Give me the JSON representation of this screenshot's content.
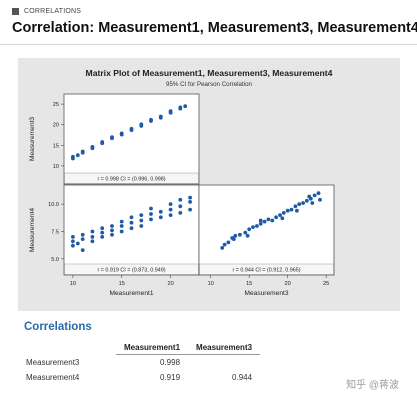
{
  "header": {
    "section_tag": "CORRELATIONS",
    "title": "Correlation: Measurement1, Measurement3, Measurement4"
  },
  "chart_data": {
    "type": "scatter",
    "title": "Matrix Plot of Measurement1, Measurement3, Measurement4",
    "subtitle": "95% CI for Pearson Correlation",
    "grid": false,
    "color": "#1f5aa6",
    "variables": [
      "Measurement1",
      "Measurement3",
      "Measurement4"
    ],
    "panels": [
      {
        "position": "top-left",
        "x_var": "Measurement1",
        "y_var": "Measurement3",
        "xlim": [
          9.5,
          22.5
        ],
        "ylim": [
          9,
          26
        ],
        "yticks": [
          10,
          15,
          20,
          25
        ],
        "annotation": "r = 0.998   CI = (0.996, 0.998)",
        "points": [
          [
            10,
            11.8
          ],
          [
            10,
            12.2
          ],
          [
            10.5,
            12.6
          ],
          [
            11,
            13.2
          ],
          [
            11,
            13.5
          ],
          [
            12,
            14.3
          ],
          [
            12,
            14.6
          ],
          [
            13,
            15.5
          ],
          [
            13,
            15.8
          ],
          [
            14,
            16.7
          ],
          [
            14,
            17
          ],
          [
            15,
            17.6
          ],
          [
            15,
            17.9
          ],
          [
            16,
            18.7
          ],
          [
            16,
            19
          ],
          [
            17,
            19.7
          ],
          [
            17,
            20.1
          ],
          [
            18,
            20.9
          ],
          [
            18,
            21.2
          ],
          [
            19,
            21.7
          ],
          [
            19,
            22
          ],
          [
            20,
            22.9
          ],
          [
            20,
            23.3
          ],
          [
            21,
            23.9
          ],
          [
            21,
            24.2
          ],
          [
            21.5,
            24.5
          ]
        ]
      },
      {
        "position": "bottom-left",
        "x_var": "Measurement1",
        "y_var": "Measurement4",
        "xlim": [
          9.5,
          22.5
        ],
        "ylim": [
          4.8,
          11.2
        ],
        "xticks": [
          10,
          15,
          20
        ],
        "yticks": [
          5.0,
          7.5,
          10.0
        ],
        "xlabel": "Measurement1",
        "ylabel": "Measurement4",
        "annotation": "r = 0.919   CI = (0.873, 0.949)",
        "points": [
          [
            10,
            6.2
          ],
          [
            10,
            6.6
          ],
          [
            10,
            7
          ],
          [
            10.5,
            6.4
          ],
          [
            11,
            5.8
          ],
          [
            11,
            6.8
          ],
          [
            11,
            7.2
          ],
          [
            12,
            6.6
          ],
          [
            12,
            7
          ],
          [
            12,
            7.5
          ],
          [
            13,
            7
          ],
          [
            13,
            7.4
          ],
          [
            13,
            7.8
          ],
          [
            14,
            7.2
          ],
          [
            14,
            7.6
          ],
          [
            14,
            8
          ],
          [
            15,
            7.5
          ],
          [
            15,
            8
          ],
          [
            15,
            8.4
          ],
          [
            16,
            7.8
          ],
          [
            16,
            8.3
          ],
          [
            16,
            8.8
          ],
          [
            17,
            8
          ],
          [
            17,
            8.5
          ],
          [
            17,
            9
          ],
          [
            18,
            8.6
          ],
          [
            18,
            9.1
          ],
          [
            18,
            9.6
          ],
          [
            19,
            8.8
          ],
          [
            19,
            9.3
          ],
          [
            20,
            9
          ],
          [
            20,
            9.5
          ],
          [
            20,
            10
          ],
          [
            21,
            9.2
          ],
          [
            21,
            9.8
          ],
          [
            21,
            10.4
          ],
          [
            22,
            9.5
          ],
          [
            22,
            10.2
          ],
          [
            22,
            10.6
          ]
        ]
      },
      {
        "position": "bottom-right",
        "x_var": "Measurement3",
        "y_var": "Measurement4",
        "xlim": [
          9,
          25.5
        ],
        "ylim": [
          4.8,
          11.2
        ],
        "xticks": [
          10,
          15,
          20,
          25
        ],
        "xlabel": "Measurement3",
        "annotation": "r = 0.944   CI = (0.912, 0.965)",
        "points": [
          [
            11.5,
            6
          ],
          [
            11.8,
            6.3
          ],
          [
            12.3,
            6.5
          ],
          [
            12.8,
            6.9
          ],
          [
            13.2,
            7.1
          ],
          [
            13.8,
            7.2
          ],
          [
            14.5,
            7.4
          ],
          [
            15,
            7.7
          ],
          [
            15.5,
            7.9
          ],
          [
            16,
            8
          ],
          [
            16.5,
            8.2
          ],
          [
            17,
            8.4
          ],
          [
            17.5,
            8.6
          ],
          [
            18,
            8.5
          ],
          [
            18.5,
            8.8
          ],
          [
            19,
            9
          ],
          [
            19.5,
            9.2
          ],
          [
            20,
            9.4
          ],
          [
            20.5,
            9.5
          ],
          [
            21,
            9.8
          ],
          [
            21.5,
            10
          ],
          [
            22,
            10.1
          ],
          [
            22.5,
            10.3
          ],
          [
            23,
            10.5
          ],
          [
            23.5,
            10.8
          ],
          [
            24,
            11
          ],
          [
            16.5,
            8.5
          ],
          [
            19.3,
            8.7
          ],
          [
            21.2,
            9.4
          ],
          [
            23.2,
            10.1
          ],
          [
            13,
            6.8
          ],
          [
            14.8,
            7.1
          ],
          [
            22.8,
            10.7
          ],
          [
            24.2,
            10.4
          ]
        ]
      }
    ]
  },
  "correlations": {
    "section_title": "Correlations",
    "columns": [
      "Measurement1",
      "Measurement3"
    ],
    "rows": [
      {
        "label": "Measurement3",
        "values": [
          "0.998",
          ""
        ]
      },
      {
        "label": "Measurement4",
        "values": [
          "0.919",
          "0.944"
        ]
      }
    ]
  },
  "watermark": "知乎 @蒋波"
}
